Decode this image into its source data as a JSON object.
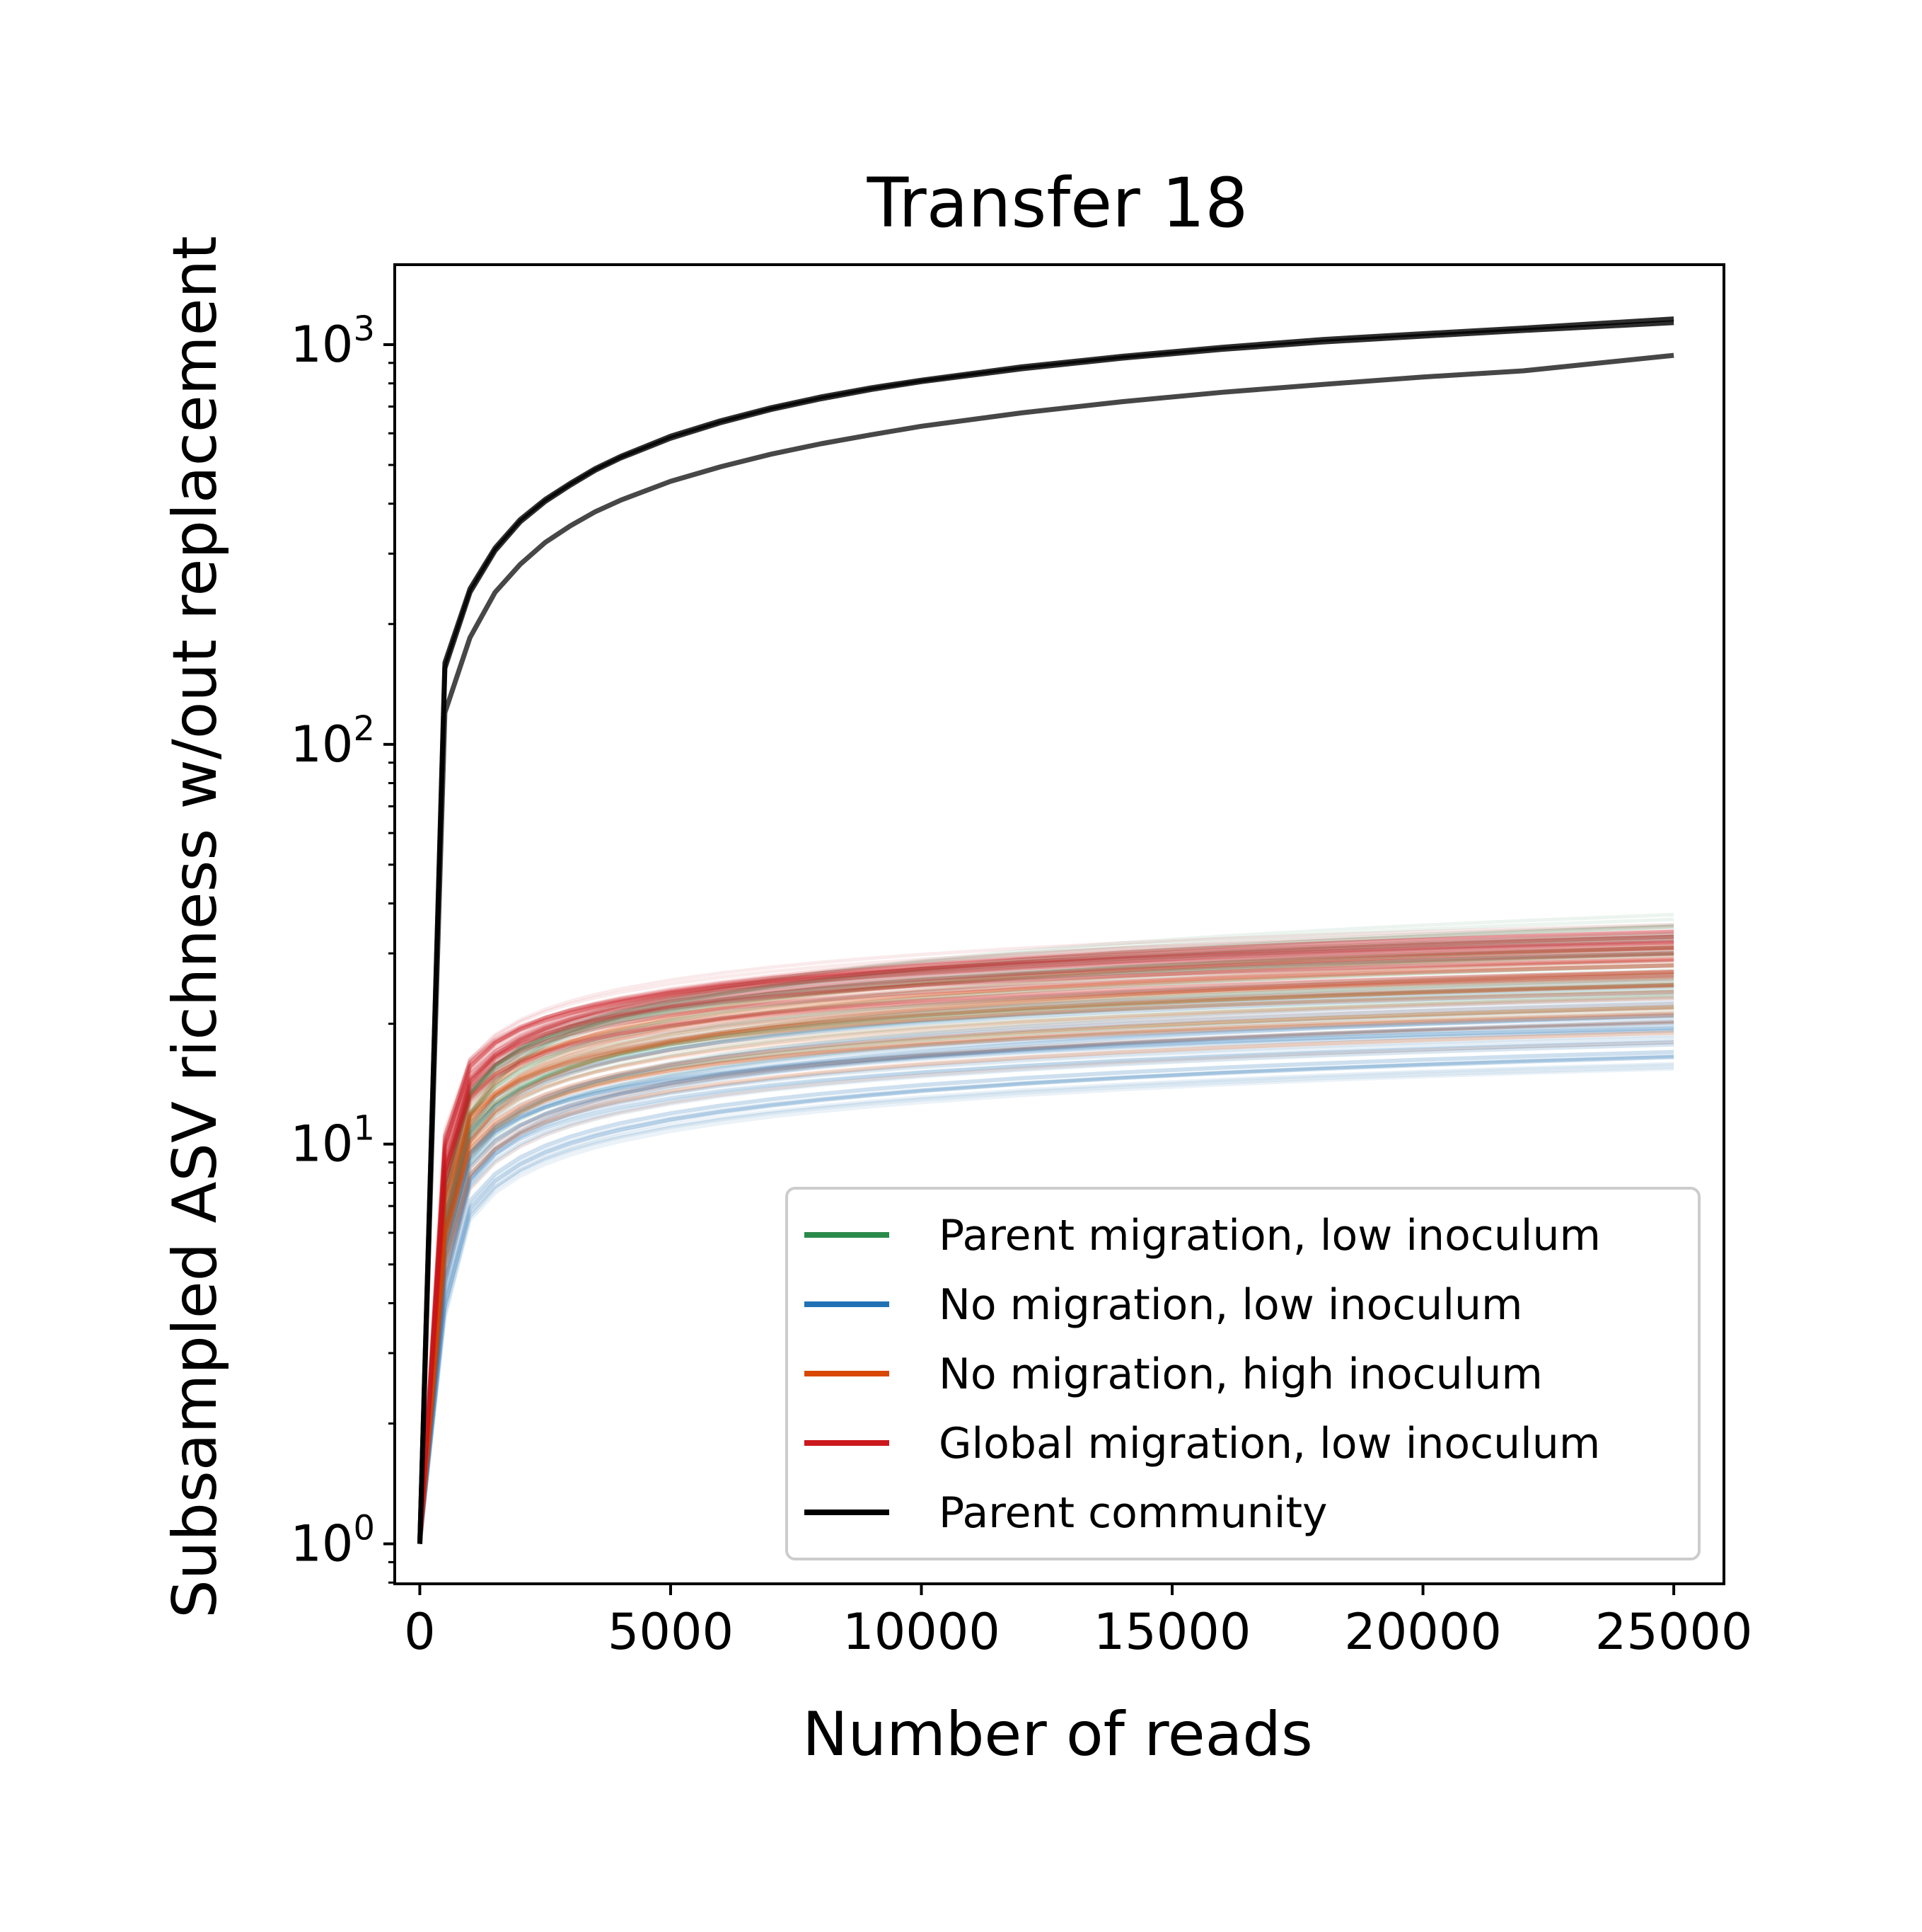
{
  "chart_data": {
    "type": "line",
    "title": "Transfer 18",
    "xlabel": "Number of reads",
    "ylabel": "Subsampled ASV richness w/out replacement",
    "xlim": [
      -500,
      26000
    ],
    "ylim_log10": [
      -0.1,
      3.2
    ],
    "yscale": "log",
    "xticks": [
      0,
      5000,
      10000,
      15000,
      20000,
      25000
    ],
    "xtick_labels": [
      "0",
      "5000",
      "10000",
      "15000",
      "20000",
      "25000"
    ],
    "yticks": [
      {
        "base": "10",
        "exp": "0",
        "value": 1
      },
      {
        "base": "10",
        "exp": "1",
        "value": 10
      },
      {
        "base": "10",
        "exp": "2",
        "value": 100
      },
      {
        "base": "10",
        "exp": "3",
        "value": 1000
      }
    ],
    "grid": false,
    "legend_position": "lower-right",
    "x": [
      0,
      500,
      1000,
      1500,
      2000,
      2500,
      3000,
      3500,
      4000,
      5000,
      6000,
      7000,
      8000,
      9000,
      10000,
      12000,
      14000,
      16000,
      18000,
      20000,
      22000,
      25000
    ],
    "series": [
      {
        "name": "Parent migration, low inoculum",
        "color": "#2a8a4a",
        "replicate_finals": [
          35,
          31,
          28,
          25,
          22,
          30,
          26,
          33
        ],
        "replicate_early": [
          6,
          8,
          7,
          6.5,
          5.5,
          8,
          6,
          7.5
        ]
      },
      {
        "name": "No migration, low inoculum",
        "color": "#2171b5",
        "replicate_finals": [
          16.5,
          18,
          19.5,
          21,
          22.5,
          24,
          17,
          20
        ],
        "replicate_early": [
          4,
          5,
          6,
          4.5,
          5.5,
          6.5,
          4.2,
          5.2
        ]
      },
      {
        "name": "No migration, high inoculum",
        "color": "#d94801",
        "replicate_finals": [
          19,
          22,
          25,
          28,
          31,
          24,
          27,
          21
        ],
        "replicate_early": [
          5,
          6,
          7,
          8,
          6.5,
          7.5,
          5.5,
          6
        ]
      },
      {
        "name": "Global migration, low inoculum",
        "color": "#cb181d",
        "replicate_finals": [
          30,
          32,
          33,
          29,
          34,
          31,
          28,
          27,
          33
        ],
        "replicate_early": [
          9,
          10,
          8.5,
          9.5,
          8,
          10.5,
          9,
          8,
          9.8
        ]
      },
      {
        "name": "Parent community",
        "color": "#000000",
        "replicates": [
          {
            "y": [
              1,
              160,
              245,
              310,
              365,
              410,
              450,
              490,
              525,
              590,
              645,
              695,
              740,
              780,
              815,
              880,
              935,
              985,
              1030,
              1065,
              1100,
              1160
            ]
          },
          {
            "y": [
              1,
              155,
              240,
              305,
              360,
              405,
              445,
              485,
              520,
              583,
              638,
              688,
              732,
              772,
              808,
              870,
              925,
              973,
              1015,
              1050,
              1085,
              1135
            ]
          },
          {
            "y": [
              1,
              120,
              185,
              240,
              282,
              320,
              352,
              382,
              408,
              455,
              495,
              532,
              565,
              595,
              625,
              675,
              720,
              760,
              795,
              830,
              860,
              940
            ]
          }
        ]
      }
    ]
  }
}
